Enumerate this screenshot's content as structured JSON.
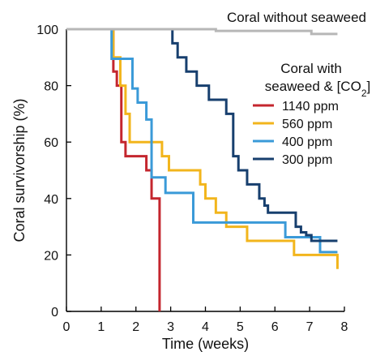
{
  "chart_data": {
    "type": "line",
    "xlabel": "Time (weeks)",
    "ylabel": "Coral survivorship (%)",
    "xlim": [
      0,
      8
    ],
    "ylim": [
      0,
      100
    ],
    "xticks": [
      0,
      1,
      2,
      3,
      4,
      5,
      6,
      7,
      8
    ],
    "yticks": [
      0,
      20,
      40,
      60,
      80,
      100
    ],
    "xtick_labels": [
      "0",
      "1",
      "2",
      "3",
      "4",
      "5",
      "6",
      "7",
      "8"
    ],
    "ytick_labels": [
      "0",
      "20",
      "40",
      "60",
      "80",
      "100"
    ],
    "grid": false,
    "legend": {
      "placement": "right",
      "title_line1": "Coral with",
      "title_line2_prefix": "seaweed & [CO",
      "title_line2_sub": "2",
      "title_line2_suffix": "]"
    },
    "annotation": {
      "text": "Coral without seaweed"
    },
    "series": [
      {
        "name": "1140 ppm",
        "color": "#c4262e",
        "step": true,
        "x": [
          0,
          1.22,
          1.35,
          1.45,
          1.58,
          1.7,
          2.1,
          2.3,
          2.45,
          2.6,
          2.68
        ],
        "y": [
          100,
          100,
          85,
          80,
          60,
          55,
          55,
          50,
          40,
          40,
          0
        ]
      },
      {
        "name": "560 ppm",
        "color": "#f2b51c",
        "step": true,
        "x": [
          0,
          1.2,
          1.35,
          1.55,
          1.7,
          1.82,
          2.6,
          2.75,
          2.95,
          3.1,
          3.6,
          3.85,
          4.0,
          4.3,
          4.6,
          5.2,
          6.0,
          6.55,
          7.55,
          7.8
        ],
        "y": [
          100,
          100,
          90,
          80,
          70,
          60,
          60,
          55,
          50,
          50,
          50,
          45,
          40,
          35,
          30,
          25,
          25,
          20,
          20,
          15
        ]
      },
      {
        "name": "400 ppm",
        "color": "#3a9ad8",
        "step": true,
        "x": [
          0,
          1.15,
          1.3,
          1.9,
          2.05,
          2.3,
          2.45,
          2.85,
          3.05,
          3.65,
          4.35,
          4.7,
          6.3,
          7.3,
          7.8
        ],
        "y": [
          100,
          100,
          89.5,
          79,
          74,
          68,
          47.5,
          42,
          42,
          31.5,
          31.5,
          31.5,
          26.3,
          21,
          21
        ]
      },
      {
        "name": "300 ppm",
        "color": "#173f6e",
        "step": true,
        "x": [
          0,
          2.9,
          3.05,
          3.2,
          3.45,
          3.75,
          4.1,
          4.6,
          4.8,
          4.95,
          5.2,
          5.55,
          5.7,
          5.8,
          6.15,
          6.6,
          6.75,
          6.9,
          7.05,
          7.2,
          7.8
        ],
        "y": [
          100,
          100,
          95,
          90,
          85,
          80,
          75,
          70,
          55,
          50,
          45,
          40,
          37.5,
          35,
          35,
          30,
          28,
          27,
          25,
          25,
          25
        ]
      },
      {
        "name": "Coral without seaweed",
        "color": "#b7b7b7",
        "step": true,
        "x": [
          0,
          4.25,
          4.3,
          7.0,
          7.05,
          7.8
        ],
        "y": [
          100,
          100,
          99.4,
          99.4,
          98.3,
          98.3
        ]
      }
    ]
  }
}
